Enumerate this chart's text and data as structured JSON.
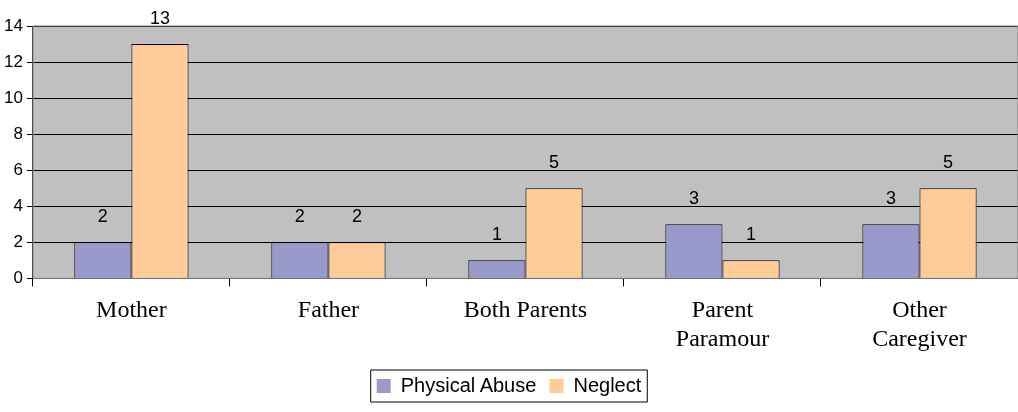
{
  "chart_data": {
    "type": "bar",
    "categories": [
      "Mother",
      "Father",
      "Both Parents",
      "Parent Paramour",
      "Other Caregiver"
    ],
    "series": [
      {
        "name": "Physical Abuse",
        "color": "#9999cc",
        "values": [
          2,
          2,
          1,
          3,
          3
        ]
      },
      {
        "name": "Neglect",
        "color": "#ffcc99",
        "values": [
          13,
          2,
          5,
          1,
          5
        ]
      }
    ],
    "ylim": [
      0,
      14
    ],
    "yticks": [
      0,
      2,
      4,
      6,
      8,
      10,
      12,
      14
    ],
    "grid": "y",
    "legend": "bottom",
    "data_labels": true
  }
}
